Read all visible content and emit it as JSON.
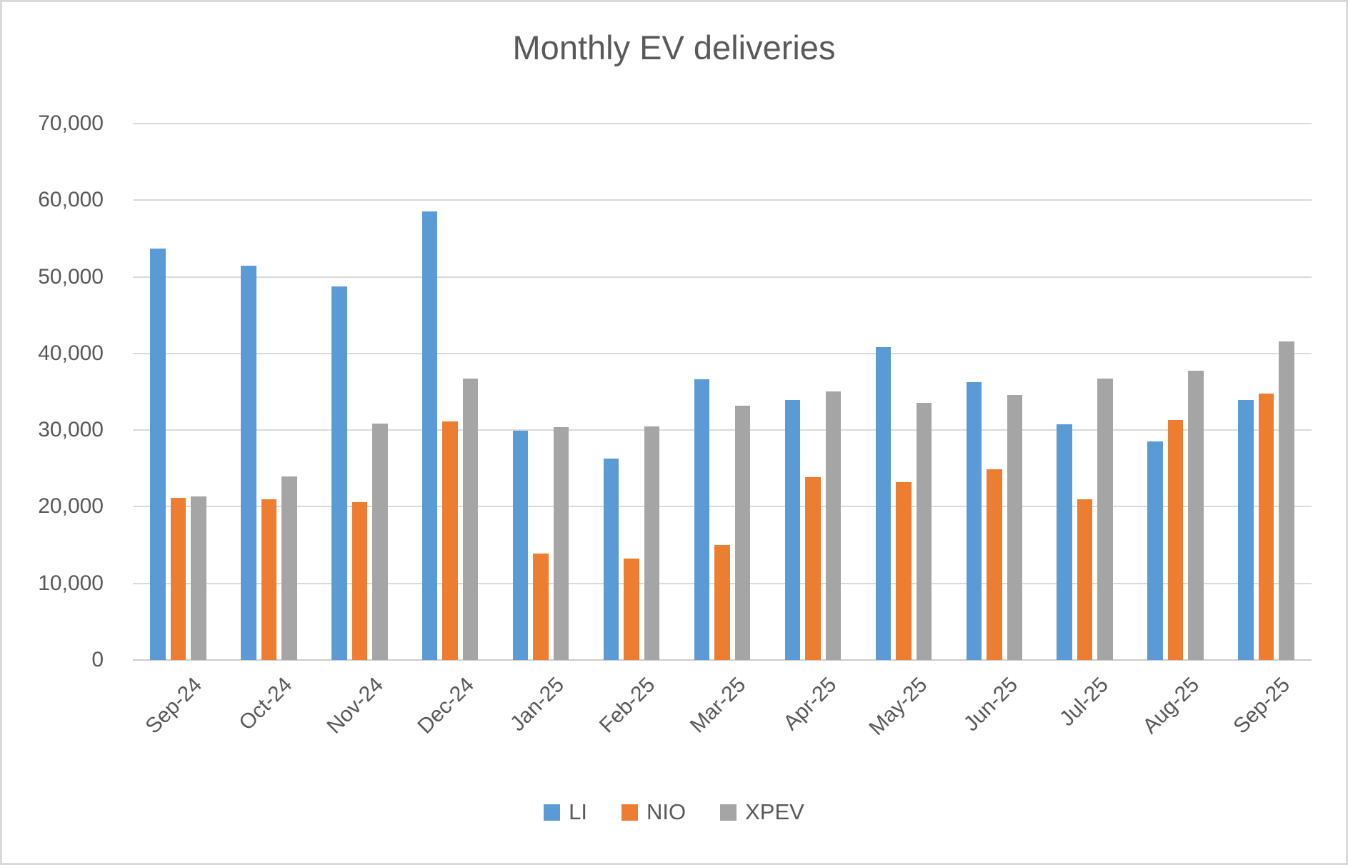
{
  "title": {
    "text": "Monthly EV deliveries"
  },
  "chart_data": {
    "type": "bar",
    "title": "Monthly EV deliveries",
    "categories": [
      "Sep-24",
      "Oct-24",
      "Nov-24",
      "Dec-24",
      "Jan-25",
      "Feb-25",
      "Mar-25",
      "Apr-25",
      "May-25",
      "Jun-25",
      "Jul-25",
      "Aug-25",
      "Sep-25"
    ],
    "series": [
      {
        "name": "LI",
        "color": "#5B9BD5",
        "values": [
          53709,
          51443,
          48740,
          58513,
          29927,
          26263,
          36674,
          33939,
          40856,
          36279,
          30731,
          28529,
          33951
        ]
      },
      {
        "name": "NIO",
        "color": "#ED7D31",
        "values": [
          21181,
          20976,
          20575,
          31138,
          13863,
          13192,
          15039,
          23900,
          23231,
          24925,
          21017,
          31305,
          34749
        ]
      },
      {
        "name": "XPEV",
        "color": "#A5A5A5",
        "values": [
          21352,
          23917,
          30895,
          36695,
          30350,
          30453,
          33205,
          35045,
          33525,
          34611,
          36717,
          37709,
          41581
        ]
      }
    ],
    "xlabel": "",
    "ylabel": "",
    "ylim": [
      0,
      70000
    ],
    "ytick_step": 10000,
    "ytick_labels": [
      "0",
      "10,000",
      "20,000",
      "30,000",
      "40,000",
      "50,000",
      "60,000",
      "70,000"
    ],
    "grid": "horizontal",
    "legend_position": "bottom",
    "x_label_rotation_deg": -45
  },
  "colors": {
    "background": "#ffffff",
    "frame_border": "#d9d9d9",
    "gridline": "#d9d9d9",
    "text": "#595959"
  }
}
